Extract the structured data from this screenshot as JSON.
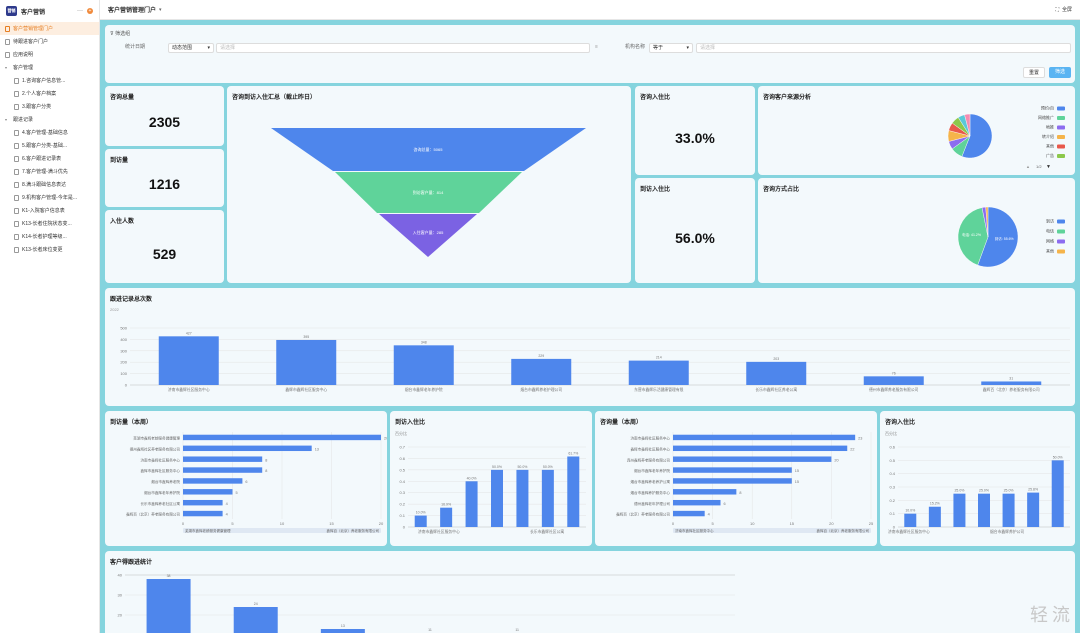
{
  "sidebar": {
    "title": "客户营销",
    "more_icon": "ellipsis-icon",
    "items": [
      {
        "label": "客户营销管理门户",
        "level": 0,
        "active": true,
        "icon": "doc"
      },
      {
        "label": "待跟进客户门户",
        "level": 0,
        "icon": "doc"
      },
      {
        "label": "应用说明",
        "level": 0,
        "icon": "doc"
      },
      {
        "label": "客户管理",
        "level": 0,
        "icon": "caret"
      },
      {
        "label": "1.咨询客户信息管...",
        "level": 1,
        "icon": "doc"
      },
      {
        "label": "2.个人客户档案",
        "level": 1,
        "icon": "doc"
      },
      {
        "label": "3.跟客户分类",
        "level": 1,
        "icon": "doc"
      },
      {
        "label": "跟进记录",
        "level": 0,
        "icon": "caret"
      },
      {
        "label": "4.客户管理-基础信息",
        "level": 1,
        "icon": "doc"
      },
      {
        "label": "5.跟客户分类-基础...",
        "level": 1,
        "icon": "doc"
      },
      {
        "label": "6.客户跟进记录表",
        "level": 1,
        "icon": "doc"
      },
      {
        "label": "7.客户管理-满斗优先",
        "level": 1,
        "icon": "doc"
      },
      {
        "label": "8.满斗跟础信息表达",
        "level": 1,
        "icon": "doc"
      },
      {
        "label": "9.机构客户管理-今年是...",
        "level": 1,
        "icon": "doc"
      },
      {
        "label": "K1-入院客户信息表",
        "level": 1,
        "icon": "doc"
      },
      {
        "label": "K13-长者住院状态变...",
        "level": 1,
        "icon": "doc"
      },
      {
        "label": "K14-长者护理等级...",
        "level": 1,
        "icon": "doc"
      },
      {
        "label": "K13-长者床位变更",
        "level": 1,
        "icon": "doc"
      }
    ]
  },
  "topbar": {
    "title": "客户营销管理门户",
    "fullscreen": "全屏"
  },
  "filter": {
    "title": "筛选组",
    "field1": "统计日期",
    "op1": "动态范围",
    "ph1": "请选择",
    "field2": "机构名称",
    "op2": "等于",
    "ph2": "请选择",
    "reset": "重置",
    "submit": "筛选"
  },
  "kpi": {
    "consult_total_label": "咨询总量",
    "consult_total": "2305",
    "visit_label": "到访量",
    "visit": "1216",
    "admit_label": "入住人数",
    "admit": "529",
    "consult_admit_label": "咨询入住比",
    "consult_admit": "33.0%",
    "visit_admit_label": "到访入住比",
    "visit_admit": "56.0%"
  },
  "funnel": {
    "title": "咨询到访入住汇总（截止昨日）",
    "stages": [
      {
        "label": "咨询总量：5065",
        "color": "#4e86ec"
      },
      {
        "label": "到访客户量：814",
        "color": "#5fd39a"
      },
      {
        "label": "入住客户量：285",
        "color": "#7b62e3"
      }
    ]
  },
  "source_pie": {
    "title": "咨询客户来源分析",
    "legend": [
      {
        "name": "预约/自",
        "color": "#4e86ec"
      },
      {
        "name": "网络推广",
        "color": "#5fd39a"
      },
      {
        "name": "地推",
        "color": "#8c6cf0"
      },
      {
        "name": "转介绍",
        "color": "#f5b44a"
      },
      {
        "name": "其他",
        "color": "#e8584a"
      },
      {
        "name": "广告",
        "color": "#8cc84b"
      }
    ],
    "pager": "1/2",
    "values": [
      56,
      9,
      6,
      8,
      6,
      6,
      5,
      4
    ]
  },
  "method_pie": {
    "title": "咨询方式占比",
    "legend": [
      {
        "name": "到访",
        "color": "#4e86ec"
      },
      {
        "name": "电话",
        "color": "#5fd39a"
      },
      {
        "name": "网络",
        "color": "#8c6cf0"
      },
      {
        "name": "其他",
        "color": "#f5b44a"
      }
    ],
    "values": [
      55.6,
      41.2,
      2,
      1.2
    ],
    "labels": [
      "到访: 55.6%",
      "电话: 41.2%"
    ]
  },
  "followup": {
    "title": "跟进记录总次数",
    "subtitle": "2022",
    "chart_data": {
      "type": "bar",
      "categories": [
        "济南市鑫辉社区服务中心",
        "鑫辉市鑫辉社区服务中心",
        "烟台市鑫辉老年养护院",
        "烟台市鑫辉养老护理公司",
        "东营市鑫辉乐活健康管理有限",
        "长乐市鑫辉社区养老公寓",
        "德州市鑫辉养老服务有限公司",
        "鑫辉百（北京）养老服务有限公司"
      ],
      "values": [
        427,
        395,
        348,
        229,
        214,
        203,
        76,
        31
      ],
      "ylim": [
        0,
        500
      ],
      "yticks": [
        0,
        100,
        200,
        300,
        400,
        500
      ]
    }
  },
  "visit_week": {
    "title": "到访量（本周）",
    "chart_data": {
      "type": "bar",
      "categories": [
        "芜湖市鑫辉老龄服务健康管理",
        "德州鑫辉社区养老服务有限公司",
        "济南市鑫辉社区服务中心",
        "鑫辉市鑫辉社区服务中心",
        "烟台市鑫辉养老院",
        "烟台市鑫辉老年养护院",
        "长乐市鑫辉养老社区公寓",
        "鑫辉百（北京）养老服务有限公司"
      ],
      "values": [
        20,
        13,
        8,
        8,
        6,
        5,
        4,
        4
      ],
      "xlim": [
        0,
        20
      ],
      "xticks": [
        0,
        5,
        10,
        15,
        20
      ],
      "footer_left": "芜湖市鑫辉老龄服务健康管理",
      "footer_right": "鑫辉百（北京）养老服务有限公司"
    }
  },
  "visit_ratio": {
    "title": "到访入住比",
    "ylabel": "百分比",
    "chart_data": {
      "type": "bar",
      "categories": [
        "济南市鑫辉社区服务中心",
        "",
        "",
        "",
        "",
        "",
        "长乐市鑫辉社区公寓"
      ],
      "values": [
        0.1,
        0.169,
        0.4,
        0.5,
        0.5,
        0.5,
        0.617
      ],
      "labels": [
        "10.0%",
        "16.9%",
        "40.0%",
        "50.0%",
        "50.0%",
        "50.0%",
        "61.7%"
      ],
      "ylim": [
        0,
        0.7
      ],
      "yticks": [
        "0",
        "0.1",
        "0.2",
        "0.3",
        "0.4",
        "0.5",
        "0.6",
        "0.7"
      ]
    }
  },
  "consult_week": {
    "title": "咨询量（本周）",
    "chart_data": {
      "type": "bar",
      "categories": [
        "济南市鑫辉社区服务中心",
        "鑫辉市鑫辉社区服务中心",
        "连州鑫辉养老服务有限公司",
        "烟台市鑫辉老年养护院",
        "烟台市鑫辉养老养护公寓",
        "烟台市鑫辉养护服务中心",
        "德州鑫辉老年护理公司",
        "鑫辉百（北京）养老服务有限公司"
      ],
      "values": [
        23,
        22,
        20,
        15,
        15,
        8,
        6,
        4
      ],
      "xlim": [
        0,
        25
      ],
      "xticks": [
        0,
        5,
        10,
        15,
        20,
        25
      ],
      "footer_left": "济南市鑫辉社区服务中心",
      "footer_right": "鑫辉百（北京）养老服务有限公司"
    }
  },
  "consult_ratio": {
    "title": "咨询入住比",
    "ylabel": "百分比",
    "chart_data": {
      "type": "bar",
      "categories": [
        "济南市鑫辉社区服务中心",
        "",
        "",
        "",
        "",
        "",
        "烟台市鑫辉养护公司"
      ],
      "values": [
        0.1,
        0.152,
        0.25,
        0.25,
        0.25,
        0.258,
        0.5
      ],
      "labels": [
        "10.0%",
        "15.2%",
        "25.0%",
        "25.0%",
        "25.0%",
        "25.8%",
        "50.0%"
      ],
      "ylim": [
        0,
        0.6
      ],
      "yticks": [
        "0",
        "0.1",
        "0.2",
        "0.3",
        "0.4",
        "0.5",
        "0.6"
      ]
    }
  },
  "customer_stats": {
    "title": "客户得跟进统计",
    "chart_data": {
      "type": "bar",
      "values": [
        38,
        24,
        13,
        11,
        11,
        0,
        0
      ],
      "labels": [
        "38",
        "24",
        "13",
        "11",
        "11",
        "",
        ""
      ],
      "ylim": [
        0,
        40
      ],
      "yticks": [
        "40",
        "30",
        "20",
        "10"
      ]
    }
  },
  "watermark": "轻流"
}
